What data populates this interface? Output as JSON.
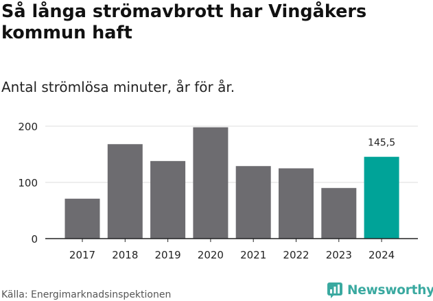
{
  "header": {
    "title": "Så långa strömavbrott har Vingåkers kommun haft",
    "subtitle": "Antal strömlösa minuter, år för år."
  },
  "chart_data": {
    "type": "bar",
    "title": "Så långa strömavbrott har Vingåkers kommun haft",
    "subtitle": "Antal strömlösa minuter, år för år.",
    "xlabel": "",
    "ylabel": "",
    "categories": [
      "2017",
      "2018",
      "2019",
      "2020",
      "2021",
      "2022",
      "2023",
      "2024"
    ],
    "values": [
      71,
      168,
      138,
      198,
      129,
      125,
      90,
      145.5
    ],
    "highlight_index": 7,
    "data_labels": [
      {
        "index": 7,
        "text": "145,5"
      }
    ],
    "ylim": [
      0,
      200
    ],
    "yticks": [
      0,
      100,
      200
    ],
    "grid": true,
    "colors": {
      "bar": "#6d6c70",
      "highlight": "#00a398",
      "grid": "#dddddd",
      "axis": "#222222"
    }
  },
  "footer": {
    "source": "Källa: Energimarknadsinspektionen",
    "brand": "Newsworthy",
    "brand_icon": "newsworthy-logo-icon",
    "brand_color": "#3aa9a0"
  }
}
